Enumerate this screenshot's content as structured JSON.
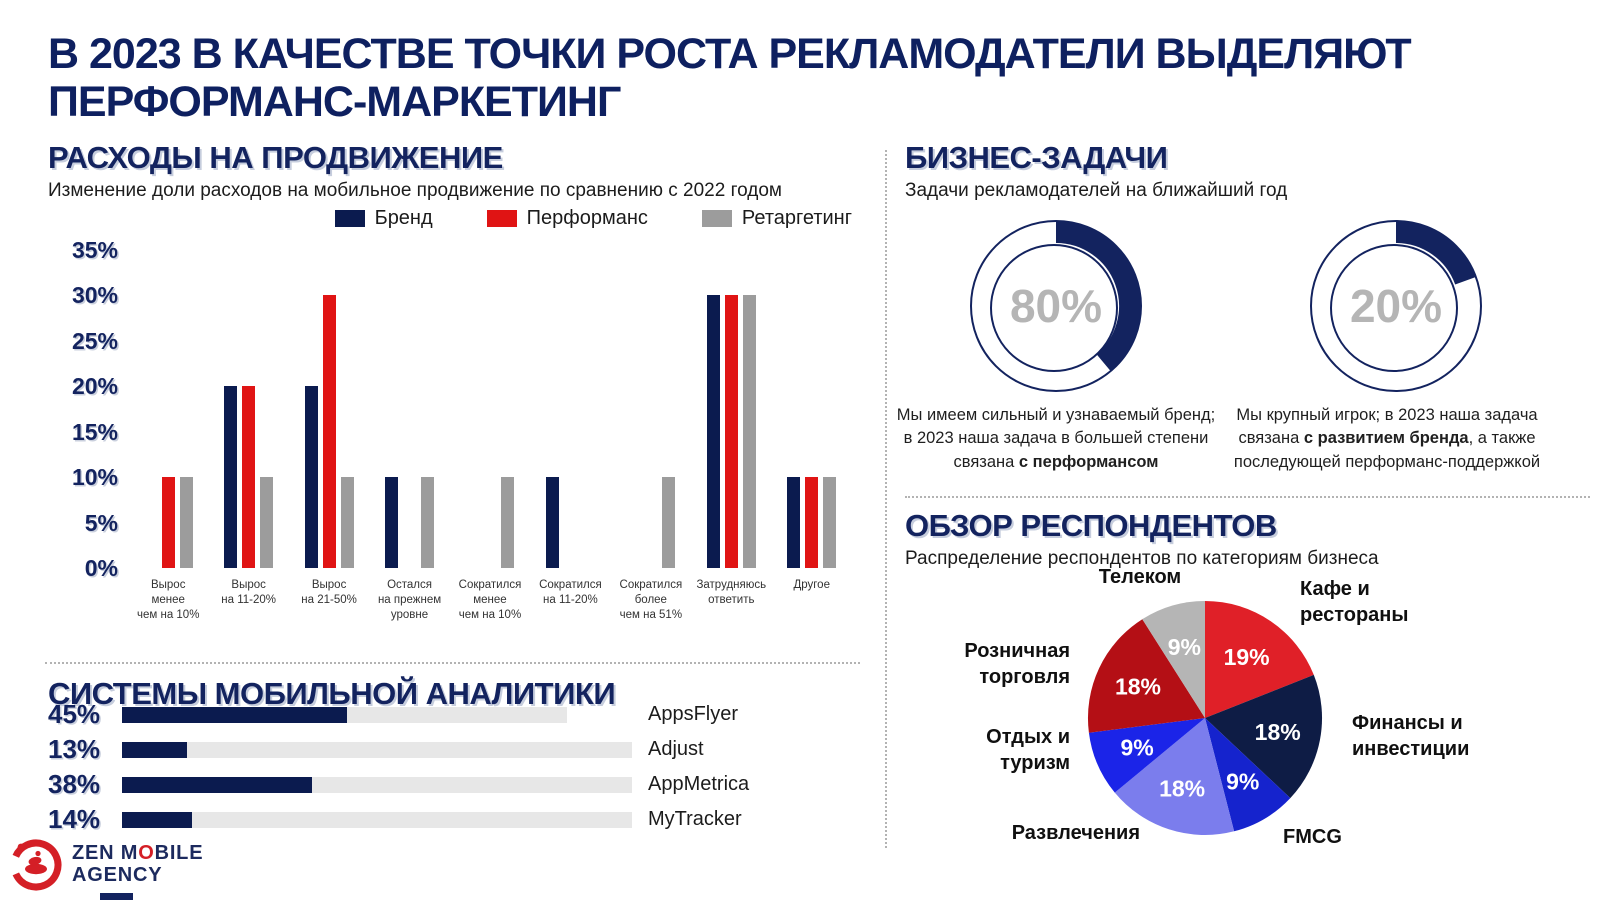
{
  "title": {
    "line1": "В 2023 В КАЧЕСТВЕ ТОЧКИ РОСТА РЕКЛАМОДАТЕЛИ ВЫДЕЛЯЮТ",
    "line2": "ПЕРФОРМАНС-МАРКЕТИНГ"
  },
  "colors": {
    "navy": "#13235f",
    "bar_navy": "#0b1b4f",
    "red": "#e01414",
    "gray": "#9c9c9c",
    "track_gray": "#e7e7e7",
    "donut_center_gray": "#b5b5b5",
    "logo_red": "#d41f26"
  },
  "sections": {
    "spend": {
      "header": "РАСХОДЫ НА ПРОДВИЖЕНИЕ",
      "subtitle": "Изменение доли расходов на мобильное продвижение по сравнению с 2022 годом"
    },
    "analytics": {
      "header": "СИСТЕМЫ МОБИЛЬНОЙ АНАЛИТИКИ"
    },
    "goals": {
      "header": "БИЗНЕС-ЗАДАЧИ",
      "subtitle": "Задачи рекламодателей на ближайший год"
    },
    "respondents": {
      "header": "ОБЗОР РЕСПОНДЕНТОВ",
      "subtitle": "Распределение респондентов по категориям бизнеса"
    }
  },
  "chart_data": [
    {
      "id": "spend_change",
      "type": "bar",
      "title": "РАСХОДЫ НА ПРОДВИЖЕНИЕ",
      "subtitle": "Изменение доли расходов на мобильное продвижение по сравнению с 2022 годом",
      "ylim": [
        0,
        35
      ],
      "y_ticks": [
        "35%",
        "30%",
        "25%",
        "20%",
        "15%",
        "10%",
        "5%",
        "0%"
      ],
      "grid": false,
      "legend_position": "top",
      "categories": [
        [
          "Вырос",
          "менее",
          "чем на 10%"
        ],
        [
          "Вырос",
          "на 11-20%"
        ],
        [
          "Вырос",
          "на 21-50%"
        ],
        [
          "Остался",
          "на прежнем",
          "уровне"
        ],
        [
          "Сократился",
          "менее",
          "чем на 10%"
        ],
        [
          "Сократился",
          "на 11-20%"
        ],
        [
          "Сократился",
          "более",
          "чем на 51%"
        ],
        [
          "Затрудняюсь",
          "ответить"
        ],
        [
          "Другое"
        ]
      ],
      "series": [
        {
          "name": "Бренд",
          "color": "#0b1b4f",
          "values": [
            0,
            20,
            20,
            10,
            0,
            10,
            0,
            30,
            10
          ]
        },
        {
          "name": "Перформанс",
          "color": "#e01414",
          "values": [
            10,
            20,
            30,
            0,
            0,
            0,
            0,
            30,
            10
          ]
        },
        {
          "name": "Ретаргетинг",
          "color": "#9c9c9c",
          "values": [
            10,
            10,
            10,
            10,
            10,
            0,
            10,
            30,
            10
          ]
        }
      ]
    },
    {
      "id": "analytics_systems",
      "type": "bar",
      "orientation": "horizontal",
      "title": "СИСТЕМЫ МОБИЛЬНОЙ АНАЛИТИКИ",
      "categories": [
        "AppsFlyer",
        "Adjust",
        "AppMetrica",
        "MyTracker"
      ],
      "values": [
        45,
        13,
        38,
        14
      ],
      "value_labels": [
        "45%",
        "13%",
        "38%",
        "14%"
      ],
      "xlim": [
        0,
        100
      ]
    },
    {
      "id": "business_goals",
      "type": "pie",
      "subtype": "donut",
      "title": "БИЗНЕС-ЗАДАЧИ",
      "subtitle": "Задачи рекламодателей на ближайший год",
      "items": [
        {
          "value": 80,
          "value_label": "80%",
          "arc_deg": 140,
          "caption_pre": "Мы имеем сильный и узнаваемый бренд; в 2023 наша задача в большей степени связана ",
          "caption_bold": "с перформансом",
          "caption_post": ""
        },
        {
          "value": 20,
          "value_label": "20%",
          "arc_deg": 70,
          "caption_pre": "Мы крупный игрок; в 2023 наша задача связана ",
          "caption_bold": "с развитием бренда",
          "caption_post": ", а также последующей перформанс-поддержкой"
        }
      ]
    },
    {
      "id": "respondents_pie",
      "type": "pie",
      "title": "ОБЗОР РЕСПОНДЕНТОВ",
      "subtitle": "Распределение респондентов по категориям бизнеса",
      "start_angle_deg": 0,
      "direction": "clockwise",
      "slices": [
        {
          "label": "Кафе и рестораны",
          "value": 19,
          "pct_label": "19%",
          "color": "#e02028"
        },
        {
          "label": "Финансы и инвестиции",
          "value": 18,
          "pct_label": "18%",
          "color": "#0e1c45"
        },
        {
          "label": "FMCG",
          "value": 9,
          "pct_label": "9%",
          "color": "#1523cd"
        },
        {
          "label": "Развлечения",
          "value": 18,
          "pct_label": "18%",
          "color": "#7b7ded"
        },
        {
          "label": "Отдых и туризм",
          "value": 9,
          "pct_label": "9%",
          "color": "#1b24e8"
        },
        {
          "label": "Розничная торговля",
          "value": 18,
          "pct_label": "18%",
          "color": "#b40f15"
        },
        {
          "label": "Телеком",
          "value": 9,
          "pct_label": "9%",
          "color": "#b5b5b5"
        }
      ]
    }
  ],
  "logo": {
    "line1_pre": "ZEN M",
    "line1_o": "O",
    "line1_post": "BILE",
    "line2": "AGENCY"
  }
}
